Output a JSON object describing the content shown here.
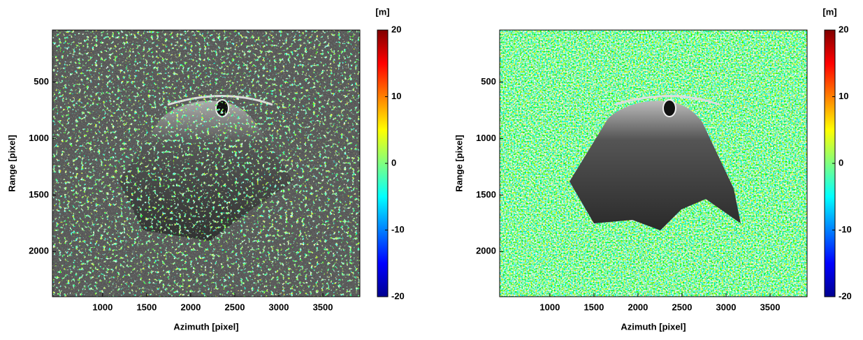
{
  "chart_data": [
    {
      "type": "image",
      "xlabel": "Azimuth [pixel]",
      "ylabel": "Range [pixel]",
      "xlim": [
        430,
        3920
      ],
      "xticks": [
        1000,
        1500,
        2000,
        2500,
        3000,
        3500
      ],
      "ylim": [
        2400,
        40
      ],
      "yticks": [
        500,
        1000,
        1500,
        2000
      ],
      "colorbar": {
        "label": "[m]",
        "colormap": "jet",
        "lim": [
          -20,
          20
        ],
        "ticks": [
          -20,
          -10,
          0,
          10,
          20
        ]
      }
    },
    {
      "type": "image",
      "xlabel": "Azimuth [pixel]",
      "ylabel": "Range [pixel]",
      "xlim": [
        430,
        3920
      ],
      "xticks": [
        1000,
        1500,
        2000,
        2500,
        3000,
        3500
      ],
      "ylim": [
        2400,
        40
      ],
      "yticks": [
        500,
        1000,
        1500,
        2000
      ],
      "colorbar": {
        "label": "[m]",
        "colormap": "jet",
        "lim": [
          -20,
          20
        ],
        "ticks": [
          -20,
          -10,
          0,
          10,
          20
        ]
      }
    }
  ]
}
